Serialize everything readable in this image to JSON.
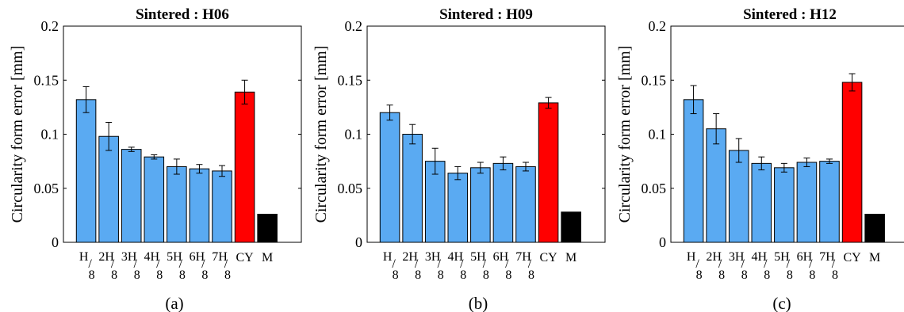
{
  "figure": {
    "background": "#ffffff"
  },
  "chart_data": [
    {
      "type": "bar",
      "title": "Sintered : H06",
      "ylabel": "Circularity form error [mm]",
      "xlabel": "",
      "ylim": [
        0,
        0.2
      ],
      "yticks": [
        0,
        0.05,
        0.1,
        0.15,
        0.2
      ],
      "ytick_labels": [
        "0",
        "0.05",
        "0.1",
        "0.15",
        "0.2"
      ],
      "grid": false,
      "legend": "none",
      "categories": [
        "H/8",
        "2H/8",
        "3H/8",
        "4H/8",
        "5H/8",
        "6H/8",
        "7H/8",
        "CY",
        "M"
      ],
      "category_labels": [
        {
          "top": "H",
          "bottom": "8"
        },
        {
          "top": "2H",
          "bottom": "8"
        },
        {
          "top": "3H",
          "bottom": "8"
        },
        {
          "top": "4H",
          "bottom": "8"
        },
        {
          "top": "5H",
          "bottom": "8"
        },
        {
          "top": "6H",
          "bottom": "8"
        },
        {
          "top": "7H",
          "bottom": "8"
        },
        {
          "top": "CY",
          "bottom": ""
        },
        {
          "top": "M",
          "bottom": ""
        }
      ],
      "values": [
        0.132,
        0.098,
        0.086,
        0.079,
        0.07,
        0.068,
        0.066,
        0.139,
        0.026
      ],
      "errors": [
        0.012,
        0.013,
        0.002,
        0.002,
        0.007,
        0.004,
        0.005,
        0.011,
        null
      ],
      "colors": [
        "#5aaaf2",
        "#5aaaf2",
        "#5aaaf2",
        "#5aaaf2",
        "#5aaaf2",
        "#5aaaf2",
        "#5aaaf2",
        "#ff0000",
        "#000000"
      ],
      "caption": "(a)"
    },
    {
      "type": "bar",
      "title": "Sintered : H09",
      "ylabel": "Circularity form error [mm]",
      "xlabel": "",
      "ylim": [
        0,
        0.2
      ],
      "yticks": [
        0,
        0.05,
        0.1,
        0.15,
        0.2
      ],
      "ytick_labels": [
        "0",
        "0.05",
        "0.1",
        "0.15",
        "0.2"
      ],
      "grid": false,
      "legend": "none",
      "categories": [
        "H/8",
        "2H/8",
        "3H/8",
        "4H/8",
        "5H/8",
        "6H/8",
        "7H/8",
        "CY",
        "M"
      ],
      "category_labels": [
        {
          "top": "H",
          "bottom": "8"
        },
        {
          "top": "2H",
          "bottom": "8"
        },
        {
          "top": "3H",
          "bottom": "8"
        },
        {
          "top": "4H",
          "bottom": "8"
        },
        {
          "top": "5H",
          "bottom": "8"
        },
        {
          "top": "6H",
          "bottom": "8"
        },
        {
          "top": "7H",
          "bottom": "8"
        },
        {
          "top": "CY",
          "bottom": ""
        },
        {
          "top": "M",
          "bottom": ""
        }
      ],
      "values": [
        0.12,
        0.1,
        0.075,
        0.064,
        0.069,
        0.073,
        0.07,
        0.129,
        0.028
      ],
      "errors": [
        0.007,
        0.009,
        0.012,
        0.006,
        0.005,
        0.006,
        0.004,
        0.005,
        null
      ],
      "colors": [
        "#5aaaf2",
        "#5aaaf2",
        "#5aaaf2",
        "#5aaaf2",
        "#5aaaf2",
        "#5aaaf2",
        "#5aaaf2",
        "#ff0000",
        "#000000"
      ],
      "caption": "(b)"
    },
    {
      "type": "bar",
      "title": "Sintered : H12",
      "ylabel": "Circularity form error [mm]",
      "xlabel": "",
      "ylim": [
        0,
        0.2
      ],
      "yticks": [
        0,
        0.05,
        0.1,
        0.15,
        0.2
      ],
      "ytick_labels": [
        "0",
        "0.05",
        "0.1",
        "0.15",
        "0.2"
      ],
      "grid": false,
      "legend": "none",
      "categories": [
        "H/8",
        "2H/8",
        "3H/8",
        "4H/8",
        "5H/8",
        "6H/8",
        "7H/8",
        "CY",
        "M"
      ],
      "category_labels": [
        {
          "top": "H",
          "bottom": "8"
        },
        {
          "top": "2H",
          "bottom": "8"
        },
        {
          "top": "3H",
          "bottom": "8"
        },
        {
          "top": "4H",
          "bottom": "8"
        },
        {
          "top": "5H",
          "bottom": "8"
        },
        {
          "top": "6H",
          "bottom": "8"
        },
        {
          "top": "7H",
          "bottom": "8"
        },
        {
          "top": "CY",
          "bottom": ""
        },
        {
          "top": "M",
          "bottom": ""
        }
      ],
      "values": [
        0.132,
        0.105,
        0.085,
        0.073,
        0.069,
        0.074,
        0.075,
        0.148,
        0.026
      ],
      "errors": [
        0.013,
        0.014,
        0.011,
        0.006,
        0.004,
        0.004,
        0.002,
        0.008,
        null
      ],
      "colors": [
        "#5aaaf2",
        "#5aaaf2",
        "#5aaaf2",
        "#5aaaf2",
        "#5aaaf2",
        "#5aaaf2",
        "#5aaaf2",
        "#ff0000",
        "#000000"
      ],
      "caption": "(c)"
    }
  ]
}
